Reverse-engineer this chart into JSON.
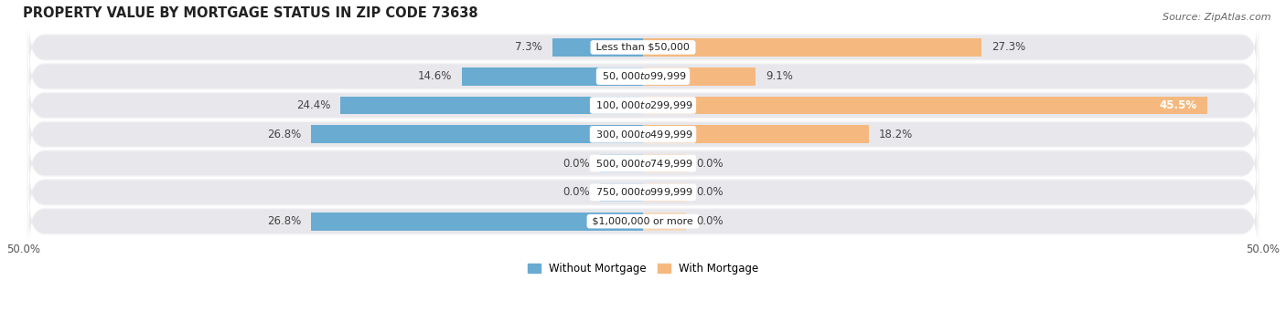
{
  "title": "PROPERTY VALUE BY MORTGAGE STATUS IN ZIP CODE 73638",
  "source": "Source: ZipAtlas.com",
  "categories": [
    "Less than $50,000",
    "$50,000 to $99,999",
    "$100,000 to $299,999",
    "$300,000 to $499,999",
    "$500,000 to $749,999",
    "$750,000 to $999,999",
    "$1,000,000 or more"
  ],
  "without_mortgage": [
    7.3,
    14.6,
    24.4,
    26.8,
    0.0,
    0.0,
    26.8
  ],
  "with_mortgage": [
    27.3,
    9.1,
    45.5,
    18.2,
    0.0,
    0.0,
    0.0
  ],
  "color_without": "#6aabd2",
  "color_without_zero": "#b8d4e8",
  "color_with": "#f5b97f",
  "color_with_zero": "#f5d9bb",
  "bar_height": 0.62,
  "row_bg_color": "#e8e8ec",
  "row_bg_outer": "#f5f5f7",
  "white": "#ffffff",
  "xlim_left": -50,
  "xlim_right": 50,
  "legend_without": "Without Mortgage",
  "legend_with": "With Mortgage",
  "title_fontsize": 10.5,
  "source_fontsize": 8,
  "label_fontsize": 8.5,
  "category_fontsize": 8,
  "axis_tick_fontsize": 8.5,
  "zero_bar_width": 3.5
}
